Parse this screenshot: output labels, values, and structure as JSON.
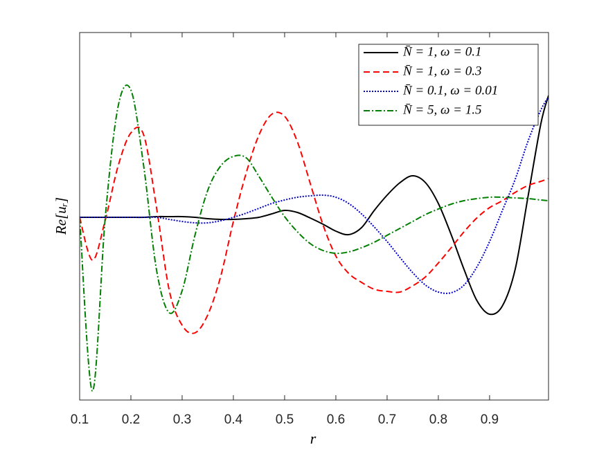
{
  "chart_data": {
    "type": "line",
    "xlabel": "r",
    "ylabel": "Re[uᵣ]",
    "x": [
      0.1,
      0.125,
      0.15,
      0.175,
      0.2,
      0.225,
      0.25,
      0.275,
      0.3,
      0.325,
      0.35,
      0.375,
      0.4,
      0.425,
      0.45,
      0.475,
      0.5,
      0.525,
      0.55,
      0.575,
      0.6,
      0.625,
      0.65,
      0.675,
      0.7,
      0.725,
      0.75,
      0.775,
      0.8,
      0.825,
      0.85,
      0.875,
      0.9,
      0.925,
      0.95,
      0.975,
      1.0,
      1.015
    ],
    "series": [
      {
        "name": "N̄ = 1, ω = 0.1",
        "color": "#000000",
        "style": "solid",
        "values": [
          0,
          0,
          0,
          0,
          0,
          0,
          0.01,
          0.01,
          0.01,
          0,
          -0.02,
          -0.03,
          -0.03,
          -0.02,
          0,
          0.05,
          0.1,
          0.07,
          -0.01,
          -0.1,
          -0.2,
          -0.25,
          -0.15,
          0.1,
          0.32,
          0.5,
          0.6,
          0.5,
          0.2,
          -0.25,
          -0.75,
          -1.2,
          -1.4,
          -1.28,
          -0.75,
          0.3,
          1.35,
          1.76
        ]
      },
      {
        "name": "N̄ = 1, ω = 0.3",
        "color": "#ff0000",
        "style": "dashed",
        "values": [
          0,
          -0.62,
          -0.04,
          0.74,
          1.22,
          1.19,
          0.14,
          -1.06,
          -1.56,
          -1.67,
          -1.41,
          -0.86,
          -0.06,
          0.64,
          1.19,
          1.49,
          1.46,
          1.09,
          0.49,
          -0.11,
          -0.56,
          -0.81,
          -0.94,
          -1.04,
          -1.07,
          -1.08,
          -0.99,
          -0.86,
          -0.66,
          -0.44,
          -0.21,
          -0.01,
          0.14,
          0.24,
          0.36,
          0.46,
          0.52,
          0.56
        ]
      },
      {
        "name": "N̄ = 0.1, ω = 0.01",
        "color": "#0000cc",
        "style": "dotted",
        "values": [
          0,
          0,
          0,
          0,
          0,
          0,
          0,
          -0.03,
          -0.06,
          -0.08,
          -0.08,
          -0.05,
          0,
          0.06,
          0.13,
          0.2,
          0.25,
          0.29,
          0.31,
          0.32,
          0.29,
          0.2,
          0.05,
          -0.14,
          -0.35,
          -0.58,
          -0.8,
          -0.98,
          -1.08,
          -1.09,
          -0.98,
          -0.72,
          -0.35,
          0.1,
          0.55,
          1.1,
          1.55,
          1.74
        ]
      },
      {
        "name": "N̄ = 5, ω = 1.5",
        "color": "#007f00",
        "style": "dashdot",
        "values": [
          0,
          -2.51,
          0,
          1.6,
          1.84,
          0.74,
          -0.76,
          -1.38,
          -1.06,
          -0.26,
          0.39,
          0.74,
          0.88,
          0.86,
          0.59,
          0.29,
          0.01,
          -0.21,
          -0.38,
          -0.48,
          -0.52,
          -0.5,
          -0.44,
          -0.36,
          -0.26,
          -0.16,
          -0.06,
          0.04,
          0.12,
          0.19,
          0.24,
          0.27,
          0.29,
          0.29,
          0.28,
          0.27,
          0.25,
          0.24
        ]
      }
    ],
    "xlim": [
      0.1,
      1.015
    ],
    "xticks": [
      0.1,
      0.2,
      0.3,
      0.4,
      0.5,
      0.6,
      0.7,
      0.8,
      0.9
    ],
    "ylim": [
      -2.64,
      2.67
    ],
    "legend": "top-right"
  }
}
